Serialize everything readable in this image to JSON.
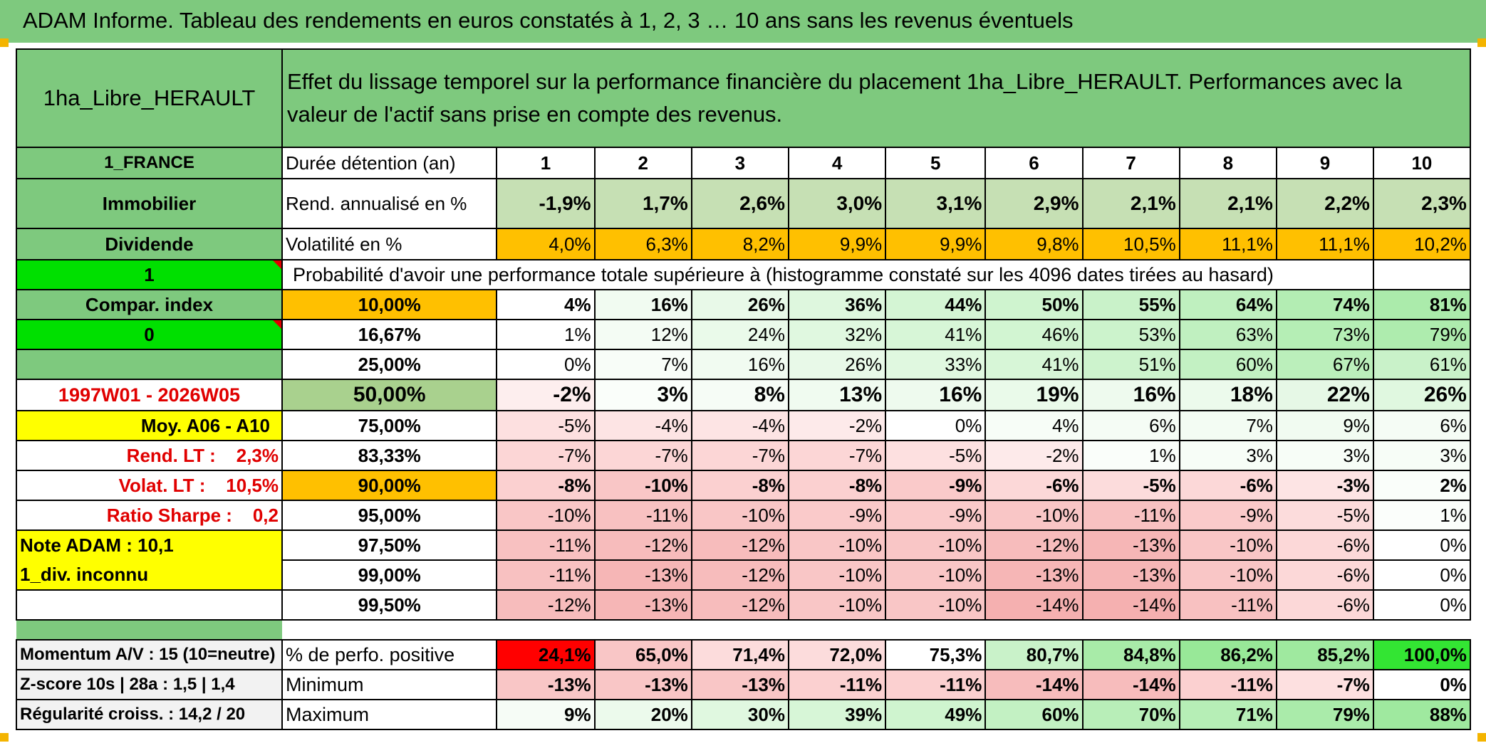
{
  "title": "ADAM Informe. Tableau des rendements en euros constatés à 1, 2, 3 … 10 ans sans les revenus éventuels",
  "fund_name": "1ha_Libre_HERAULT",
  "description": "Effet du lissage temporel sur la performance financière du placement 1ha_Libre_HERAULT. Performances avec la valeur de l'actif sans prise en compte des revenus.",
  "left_labels": {
    "country": "1_FRANCE",
    "asset_class": "Immobilier",
    "income_type": "Dividende",
    "flag_1": "1",
    "compar_index": "Compar. index",
    "flag_0": "0",
    "period": "1997W01 - 2026W05",
    "moy": "Moy. A06 - A10",
    "rend_lt": "Rend. LT :    2,3%",
    "volat_lt": "Volat. LT :    10,5%",
    "sharpe": "Ratio Sharpe :    0,2",
    "note": "Note ADAM : 10,1",
    "div": "1_div. inconnu",
    "momentum": "Momentum A/V : 15 (10=neutre)",
    "zscore": "Z-score 10s | 28a : 1,5 | 1,4",
    "regularite": "Régularité croiss. : 14,2 / 20"
  },
  "row_labels": {
    "duree": "Durée détention (an)",
    "rend": "Rend. annualisé en %",
    "volat": "Volatilité en %",
    "proba": "Probabilité d'avoir une performance totale supérieure à (histogramme constaté sur les 4096 dates tirées au hasard)",
    "perfo_pos": "% de perfo. positive",
    "minimum": "Minimum",
    "maximum": "Maximum"
  },
  "years": [
    "1",
    "2",
    "3",
    "4",
    "5",
    "6",
    "7",
    "8",
    "9",
    "10"
  ],
  "rend": [
    "-1,9%",
    "1,7%",
    "2,6%",
    "3,0%",
    "3,1%",
    "2,9%",
    "2,1%",
    "2,1%",
    "2,2%",
    "2,3%"
  ],
  "volat": [
    "4,0%",
    "6,3%",
    "8,2%",
    "9,9%",
    "9,9%",
    "9,8%",
    "10,5%",
    "11,1%",
    "11,1%",
    "10,2%"
  ],
  "quantiles": [
    {
      "label": "10,00%",
      "values": [
        "4%",
        "16%",
        "26%",
        "36%",
        "44%",
        "50%",
        "55%",
        "64%",
        "74%",
        "81%"
      ]
    },
    {
      "label": "16,67%",
      "values": [
        "1%",
        "12%",
        "24%",
        "32%",
        "41%",
        "46%",
        "53%",
        "63%",
        "73%",
        "79%"
      ]
    },
    {
      "label": "25,00%",
      "values": [
        "0%",
        "7%",
        "16%",
        "26%",
        "33%",
        "41%",
        "51%",
        "60%",
        "67%",
        "61%"
      ]
    },
    {
      "label": "50,00%",
      "values": [
        "-2%",
        "3%",
        "8%",
        "13%",
        "16%",
        "19%",
        "16%",
        "18%",
        "22%",
        "26%"
      ]
    },
    {
      "label": "75,00%",
      "values": [
        "-5%",
        "-4%",
        "-4%",
        "-2%",
        "0%",
        "4%",
        "6%",
        "7%",
        "9%",
        "6%"
      ]
    },
    {
      "label": "83,33%",
      "values": [
        "-7%",
        "-7%",
        "-7%",
        "-7%",
        "-5%",
        "-2%",
        "1%",
        "3%",
        "3%",
        "3%"
      ]
    },
    {
      "label": "90,00%",
      "values": [
        "-8%",
        "-10%",
        "-8%",
        "-8%",
        "-9%",
        "-6%",
        "-5%",
        "-6%",
        "-3%",
        "2%"
      ]
    },
    {
      "label": "95,00%",
      "values": [
        "-10%",
        "-11%",
        "-10%",
        "-9%",
        "-9%",
        "-10%",
        "-11%",
        "-9%",
        "-5%",
        "1%"
      ]
    },
    {
      "label": "97,50%",
      "values": [
        "-11%",
        "-12%",
        "-12%",
        "-10%",
        "-10%",
        "-12%",
        "-13%",
        "-10%",
        "-6%",
        "0%"
      ]
    },
    {
      "label": "99,00%",
      "values": [
        "-11%",
        "-13%",
        "-12%",
        "-10%",
        "-10%",
        "-13%",
        "-13%",
        "-10%",
        "-6%",
        "0%"
      ]
    },
    {
      "label": "99,50%",
      "values": [
        "-12%",
        "-13%",
        "-12%",
        "-10%",
        "-10%",
        "-14%",
        "-14%",
        "-11%",
        "-6%",
        "0%"
      ]
    }
  ],
  "perfo_pos": [
    "24,1%",
    "65,0%",
    "71,4%",
    "72,0%",
    "75,3%",
    "80,7%",
    "84,8%",
    "86,2%",
    "85,2%",
    "100,0%"
  ],
  "minimum": [
    "-13%",
    "-13%",
    "-13%",
    "-11%",
    "-11%",
    "-14%",
    "-14%",
    "-11%",
    "-7%",
    "0%"
  ],
  "maximum": [
    "9%",
    "20%",
    "30%",
    "39%",
    "49%",
    "60%",
    "70%",
    "71%",
    "79%",
    "88%"
  ],
  "colors": {
    "header_green": "#7ec97e",
    "bright_green": "#00e000",
    "orange": "#ffc000",
    "yellow": "#ffff00",
    "label_red": "#e00000",
    "rend_bg": [
      "#c6e0b4",
      "#c6e0b4",
      "#c6e0b4",
      "#c6e0b4",
      "#c6e0b4",
      "#c6e0b4",
      "#c6e0b4",
      "#c6e0b4",
      "#c6e0b4",
      "#c6e0b4"
    ],
    "volat_bg": [
      "#ffc000",
      "#ffc000",
      "#ffc000",
      "#ffc000",
      "#ffc000",
      "#ffc000",
      "#ffc000",
      "#ffc000",
      "#ffc000",
      "#ffc000"
    ],
    "quantile_bg": [
      [
        "#ffffff",
        "#f1fbf1",
        "#e8f9e8",
        "#def7de",
        "#d4f5d4",
        "#cff4cf",
        "#c9f2c9",
        "#bff0bf",
        "#b3edb3",
        "#abebab"
      ],
      [
        "#ffffff",
        "#f4fcf4",
        "#eafaea",
        "#e0f8e0",
        "#d7f6d7",
        "#d2f5d2",
        "#ccf3cc",
        "#c0f0c0",
        "#b5eeb5",
        "#aeecae"
      ],
      [
        "#ffffff",
        "#f8fdf8",
        "#f1fbf1",
        "#e8f9e8",
        "#e0f8e0",
        "#d7f6d7",
        "#cdf3cd",
        "#c3f1c3",
        "#bbefbb",
        "#c9f2c9"
      ],
      [
        "#fdeeee",
        "#fafefa",
        "#f6fcf6",
        "#f0fbf0",
        "#eefaee",
        "#eafaea",
        "#eefaee",
        "#ecfaec",
        "#e6f8e6",
        "#e0f8e0"
      ],
      [
        "#fde0e0",
        "#fde4e4",
        "#fde4e4",
        "#fdeaea",
        "#ffffff",
        "#f7fdf7",
        "#f5fcf5",
        "#f3fcf3",
        "#f1fbf1",
        "#f5fcf5"
      ],
      [
        "#fcd6d6",
        "#fcd6d6",
        "#fcd6d6",
        "#fcd6d6",
        "#fde0e0",
        "#fdeaea",
        "#fafefa",
        "#f7fdf7",
        "#f7fdf7",
        "#f7fdf7"
      ],
      [
        "#fbd0d0",
        "#f9c6c6",
        "#fbd0d0",
        "#fbd0d0",
        "#facaca",
        "#fcd8d8",
        "#fcdcdc",
        "#fcd8d8",
        "#fde4e4",
        "#fafefa"
      ],
      [
        "#f9c6c6",
        "#f8c1c1",
        "#f9c6c6",
        "#facaca",
        "#facaca",
        "#f9c6c6",
        "#f8c1c1",
        "#facaca",
        "#fcdcdc",
        "#fbfefb"
      ],
      [
        "#f8c1c1",
        "#f7bcbc",
        "#f7bcbc",
        "#f9c6c6",
        "#f9c6c6",
        "#f7bcbc",
        "#f6b6b6",
        "#f9c6c6",
        "#fcd8d8",
        "#ffffff"
      ],
      [
        "#f8c1c1",
        "#f6b6b6",
        "#f7bcbc",
        "#f9c6c6",
        "#f9c6c6",
        "#f6b6b6",
        "#f6b6b6",
        "#f9c6c6",
        "#fcd8d8",
        "#ffffff"
      ],
      [
        "#f7bcbc",
        "#f6b6b6",
        "#f7bcbc",
        "#f9c6c6",
        "#f9c6c6",
        "#f5b0b0",
        "#f5b0b0",
        "#f8c1c1",
        "#fcd8d8",
        "#ffffff"
      ]
    ],
    "perfo_bg": [
      "#ff0000",
      "#f9c6c6",
      "#fcdcdc",
      "#fcdcdc",
      "#ffffff",
      "#c9f2c9",
      "#a8eba8",
      "#98e898",
      "#9fe99f",
      "#33e533"
    ],
    "minimum_bg": [
      "#f9c6c6",
      "#f9c6c6",
      "#f9c6c6",
      "#fbd0d0",
      "#fbd0d0",
      "#f7bcbc",
      "#f7bcbc",
      "#fbd0d0",
      "#fde0e0",
      "#ffffff"
    ],
    "maximum_bg": [
      "#f6fcf6",
      "#ecfaec",
      "#e0f8e0",
      "#d7f6d7",
      "#cff4cf",
      "#c3f1c3",
      "#b8eeb8",
      "#b6eeb6",
      "#aaebaa",
      "#9fe99f"
    ]
  }
}
